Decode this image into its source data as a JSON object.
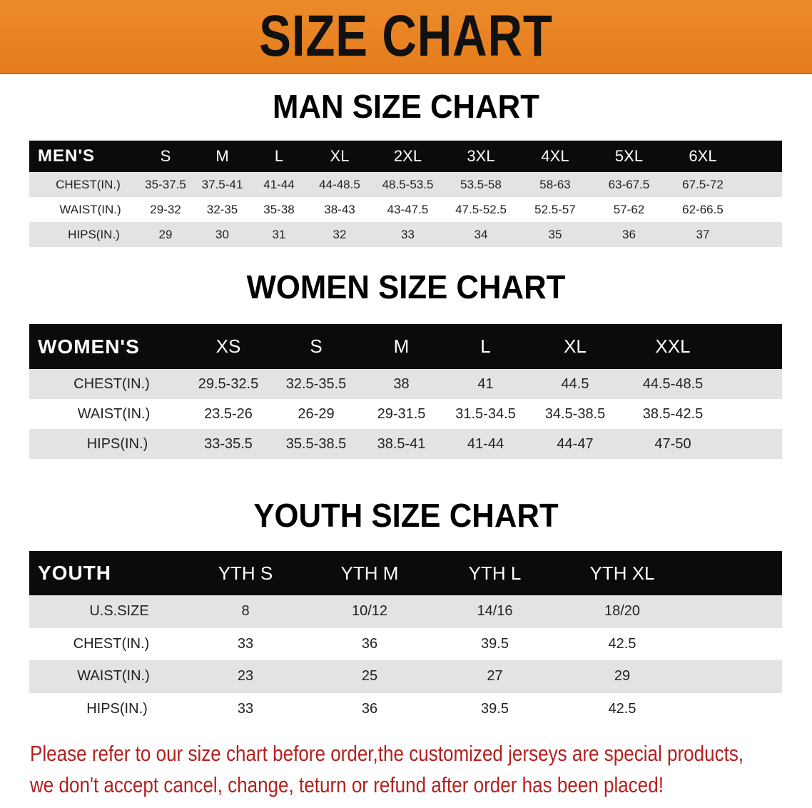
{
  "banner": {
    "title": "SIZE CHART",
    "color": "#e8821f"
  },
  "men": {
    "title": "MAN SIZE CHART",
    "header": [
      "MEN'S",
      "S",
      "M",
      "L",
      "XL",
      "2XL",
      "3XL",
      "4XL",
      "5XL",
      "6XL"
    ],
    "rows": [
      [
        "CHEST(IN.)",
        "35-37.5",
        "37.5-41",
        "41-44",
        "44-48.5",
        "48.5-53.5",
        "53.5-58",
        "58-63",
        "63-67.5",
        "67.5-72"
      ],
      [
        "WAIST(IN.)",
        "29-32",
        "32-35",
        "35-38",
        "38-43",
        "43-47.5",
        "47.5-52.5",
        "52.5-57",
        "57-62",
        "62-66.5"
      ],
      [
        "HIPS(IN.)",
        "29",
        "30",
        "31",
        "32",
        "33",
        "34",
        "35",
        "36",
        "37"
      ]
    ]
  },
  "women": {
    "title": "WOMEN SIZE CHART",
    "header": [
      "WOMEN'S",
      "XS",
      "S",
      "M",
      "L",
      "XL",
      "XXL"
    ],
    "rows": [
      [
        "CHEST(IN.)",
        "29.5-32.5",
        "32.5-35.5",
        "38",
        "41",
        "44.5",
        "44.5-48.5"
      ],
      [
        "WAIST(IN.)",
        "23.5-26",
        "26-29",
        "29-31.5",
        "31.5-34.5",
        "34.5-38.5",
        "38.5-42.5"
      ],
      [
        "HIPS(IN.)",
        "33-35.5",
        "35.5-38.5",
        "38.5-41",
        "41-44",
        "44-47",
        "47-50"
      ]
    ]
  },
  "youth": {
    "title": "YOUTH SIZE CHART",
    "header": [
      "YOUTH",
      "YTH S",
      "YTH M",
      "YTH L",
      "YTH XL"
    ],
    "rows": [
      [
        "U.S.SIZE",
        "8",
        "10/12",
        "14/16",
        "18/20"
      ],
      [
        "CHEST(IN.)",
        "33",
        "36",
        "39.5",
        "42.5"
      ],
      [
        "WAIST(IN.)",
        "23",
        "25",
        "27",
        "29"
      ],
      [
        "HIPS(IN.)",
        "33",
        "36",
        "39.5",
        "42.5"
      ]
    ]
  },
  "note": {
    "line1": "Please refer to our size chart before order,the customized jerseys are special products,",
    "line2": "we don't accept cancel, change, teturn or refund after order has been placed!",
    "color": "#b3201f"
  }
}
